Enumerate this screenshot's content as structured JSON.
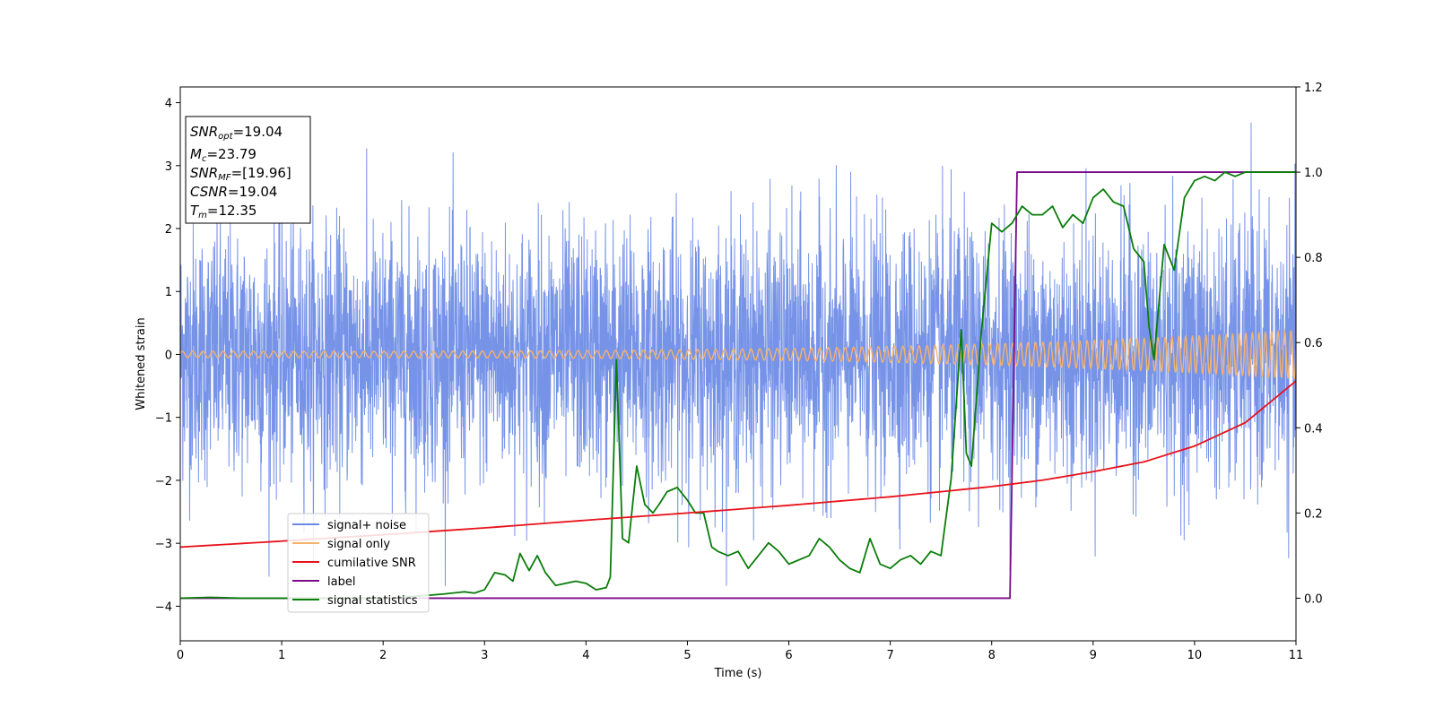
{
  "chart_data": {
    "type": "line",
    "xlabel": "Time (s)",
    "ylabel": "Whitened strain",
    "xlim": [
      0,
      11
    ],
    "ylim_left": [
      -4.55,
      4.25
    ],
    "ylim_right": [
      -0.1,
      1.2
    ],
    "x_ticks": [
      0,
      1,
      2,
      3,
      4,
      5,
      6,
      7,
      8,
      9,
      10,
      11
    ],
    "y_left_ticks": [
      -4,
      -3,
      -2,
      -1,
      0,
      1,
      2,
      3,
      4
    ],
    "y_right_ticks": [
      0.0,
      0.2,
      0.4,
      0.6,
      0.8,
      1.0,
      1.2
    ],
    "y_left_tick_labels": [
      "−4",
      "−3",
      "−2",
      "−1",
      "0",
      "1",
      "2",
      "3",
      "4"
    ],
    "y_right_tick_labels": [
      "0.0",
      "0.2",
      "0.4",
      "0.6",
      "0.8",
      "1.0",
      "1.2"
    ],
    "legend_position": "lower-left",
    "series": [
      {
        "name": "signal+ noise",
        "axis": "left",
        "color": "#6a8ae6",
        "description": "noisy whitened strain, amplitude ~ -3.6 to 3.9"
      },
      {
        "name": "signal only",
        "axis": "left",
        "color": "#f5b26b",
        "description": "chirp, amplitude grows from ~0.05 at t=0 to ~0.38 at t=11"
      },
      {
        "name": "cumilative SNR",
        "axis": "right",
        "color": "#e8121a",
        "x": [
          0,
          1,
          2,
          3,
          4,
          5,
          6,
          7,
          8,
          8.5,
          9,
          9.5,
          10,
          10.5,
          11
        ],
        "y": [
          0.12,
          0.134,
          0.149,
          0.165,
          0.183,
          0.2,
          0.218,
          0.238,
          0.262,
          0.277,
          0.297,
          0.32,
          0.357,
          0.412,
          0.51
        ]
      },
      {
        "name": "label",
        "axis": "right",
        "color": "#7b0a8a",
        "x": [
          0,
          8.18,
          8.25,
          11
        ],
        "y": [
          0,
          0,
          1,
          1
        ]
      },
      {
        "name": "signal statistics",
        "axis": "right",
        "color": "#0a7d0a",
        "x": [
          0,
          0.3,
          0.6,
          1.0,
          1.5,
          2.0,
          2.4,
          2.6,
          2.8,
          2.9,
          3.0,
          3.1,
          3.2,
          3.28,
          3.35,
          3.44,
          3.52,
          3.6,
          3.7,
          3.8,
          3.9,
          4.0,
          4.1,
          4.2,
          4.24,
          4.3,
          4.36,
          4.42,
          4.5,
          4.58,
          4.66,
          4.72,
          4.8,
          4.9,
          5.0,
          5.08,
          5.16,
          5.24,
          5.3,
          5.4,
          5.5,
          5.6,
          5.7,
          5.8,
          5.9,
          6.0,
          6.1,
          6.2,
          6.3,
          6.4,
          6.5,
          6.6,
          6.7,
          6.8,
          6.9,
          7.0,
          7.1,
          7.2,
          7.3,
          7.4,
          7.5,
          7.6,
          7.7,
          7.75,
          7.8,
          7.9,
          8.0,
          8.1,
          8.2,
          8.3,
          8.4,
          8.5,
          8.6,
          8.7,
          8.8,
          8.9,
          9.0,
          9.1,
          9.2,
          9.3,
          9.4,
          9.5,
          9.55,
          9.6,
          9.7,
          9.8,
          9.9,
          10.0,
          10.1,
          10.2,
          10.3,
          10.4,
          10.5,
          10.7,
          11.0
        ],
        "y": [
          0,
          0.002,
          0.0,
          0.0,
          0.0,
          0.0,
          0.006,
          0.01,
          0.015,
          0.012,
          0.02,
          0.06,
          0.055,
          0.04,
          0.105,
          0.065,
          0.1,
          0.06,
          0.03,
          0.035,
          0.04,
          0.035,
          0.02,
          0.025,
          0.05,
          0.56,
          0.14,
          0.13,
          0.31,
          0.22,
          0.2,
          0.22,
          0.25,
          0.26,
          0.23,
          0.2,
          0.2,
          0.12,
          0.11,
          0.1,
          0.11,
          0.07,
          0.1,
          0.13,
          0.11,
          0.08,
          0.09,
          0.1,
          0.14,
          0.12,
          0.09,
          0.07,
          0.06,
          0.14,
          0.08,
          0.07,
          0.09,
          0.1,
          0.08,
          0.11,
          0.1,
          0.28,
          0.63,
          0.34,
          0.31,
          0.63,
          0.88,
          0.86,
          0.88,
          0.92,
          0.9,
          0.9,
          0.92,
          0.87,
          0.9,
          0.88,
          0.94,
          0.96,
          0.93,
          0.92,
          0.82,
          0.79,
          0.64,
          0.56,
          0.83,
          0.77,
          0.94,
          0.98,
          0.99,
          0.98,
          1.0,
          0.99,
          1.0,
          1.0,
          1.0
        ]
      }
    ],
    "info_box": {
      "snr_opt": "=19.04",
      "mc": "=23.79",
      "snr_mf": "=[19.96]",
      "csnr": "=19.04",
      "tm": "=12.35"
    }
  }
}
